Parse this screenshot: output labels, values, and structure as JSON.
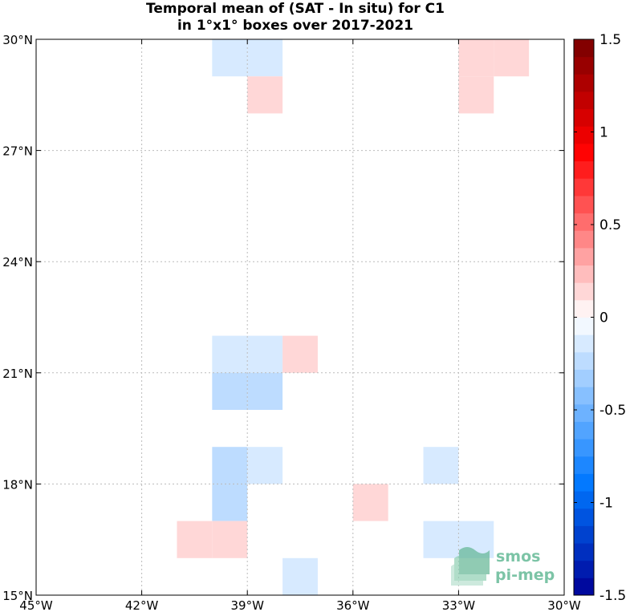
{
  "chart_data": {
    "type": "heatmap",
    "title": "Temporal mean of (SAT - In situ) for C1",
    "subtitle": "in 1°x1° boxes over 2017-2021",
    "xlim": [
      -45,
      -30
    ],
    "ylim": [
      15,
      30
    ],
    "x_ticks": [
      {
        "value": -45,
        "label": "45°W"
      },
      {
        "value": -42,
        "label": "42°W"
      },
      {
        "value": -39,
        "label": "39°W"
      },
      {
        "value": -36,
        "label": "36°W"
      },
      {
        "value": -33,
        "label": "33°W"
      },
      {
        "value": -30,
        "label": "30°W"
      }
    ],
    "y_ticks": [
      {
        "value": 15,
        "label": "15°N"
      },
      {
        "value": 18,
        "label": "18°N"
      },
      {
        "value": 21,
        "label": "21°N"
      },
      {
        "value": 24,
        "label": "24°N"
      },
      {
        "value": 27,
        "label": "27°N"
      },
      {
        "value": 30,
        "label": "30°N"
      }
    ],
    "grid": true,
    "colorbar": {
      "vmin": -1.5,
      "vmax": 1.5,
      "levels": 32,
      "ticks": [
        1.5,
        1,
        0.5,
        0,
        -0.5,
        -1,
        -1.5
      ],
      "tick_labels": [
        "1.5",
        "1",
        "0.5",
        "0",
        "-0.5",
        "-1",
        "-1.5"
      ],
      "placement": "right"
    },
    "cells": [
      {
        "lon": -40,
        "lat": 29,
        "value": -0.1
      },
      {
        "lon": -39,
        "lat": 29,
        "value": -0.1
      },
      {
        "lon": -39,
        "lat": 28,
        "value": 0.15
      },
      {
        "lon": -33,
        "lat": 29,
        "value": 0.15
      },
      {
        "lon": -32,
        "lat": 29,
        "value": 0.15
      },
      {
        "lon": -33,
        "lat": 28,
        "value": 0.15
      },
      {
        "lon": -40,
        "lat": 21,
        "value": -0.1
      },
      {
        "lon": -39,
        "lat": 21,
        "value": -0.1
      },
      {
        "lon": -38,
        "lat": 21,
        "value": 0.15
      },
      {
        "lon": -40,
        "lat": 20,
        "value": -0.25
      },
      {
        "lon": -39,
        "lat": 20,
        "value": -0.25
      },
      {
        "lon": -40,
        "lat": 18,
        "value": -0.25
      },
      {
        "lon": -39,
        "lat": 18,
        "value": -0.1
      },
      {
        "lon": -34,
        "lat": 18,
        "value": -0.1
      },
      {
        "lon": -40,
        "lat": 17,
        "value": -0.25
      },
      {
        "lon": -36,
        "lat": 17,
        "value": 0.15
      },
      {
        "lon": -41,
        "lat": 16,
        "value": 0.15
      },
      {
        "lon": -40,
        "lat": 16,
        "value": 0.15
      },
      {
        "lon": -34,
        "lat": 16,
        "value": -0.1
      },
      {
        "lon": -33,
        "lat": 16,
        "value": -0.1
      },
      {
        "lon": -38,
        "lat": 15,
        "value": -0.1
      }
    ]
  },
  "logo": {
    "line1": "smos",
    "line2": "pi-mep"
  }
}
